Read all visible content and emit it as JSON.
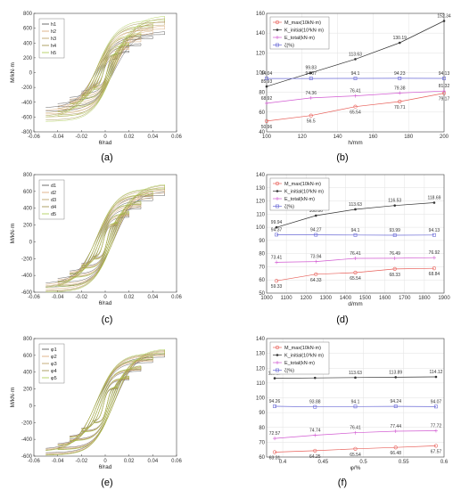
{
  "captions": [
    "(a)",
    "(b)",
    "(c)",
    "(d)",
    "(e)",
    "(f)"
  ],
  "colors": {
    "M": "#e8605a",
    "K": "#333333",
    "E": "#d25bd2",
    "Z": "#6a6ad6"
  },
  "hysteresis": [
    {
      "type": "hysteresis",
      "xlabel": "θ/rad",
      "ylabel": "M/kN·m",
      "xlim": [
        -0.06,
        0.06
      ],
      "ylim": [
        -800,
        800
      ],
      "xticks": [
        "-0.06",
        "-0.04",
        "-0.02",
        "0",
        "0.02",
        "0.04",
        "0.06"
      ],
      "yticks": [
        "800",
        "600",
        "400",
        "200",
        "0",
        "-200",
        "-400",
        "-600",
        "-800"
      ],
      "legend": [
        "h1",
        "h2",
        "h3",
        "h4",
        "h5"
      ],
      "colors": [
        "#4a4a4a",
        "#d8a470",
        "#b79a5a",
        "#9a8a40",
        "#a7c94a"
      ],
      "peaks_pos": [
        560,
        640,
        700,
        740,
        770
      ],
      "peaks_neg": [
        -520,
        -560,
        -600,
        -640,
        -660
      ]
    },
    {
      "type": "hysteresis",
      "xlabel": "θ/rad",
      "ylabel": "M/kN·m",
      "xlim": [
        -0.06,
        0.06
      ],
      "ylim": [
        -600,
        800
      ],
      "xticks": [
        "-0.06",
        "-0.04",
        "-0.02",
        "0",
        "0.02",
        "0.04",
        "0.06"
      ],
      "yticks": [
        "800",
        "600",
        "400",
        "200",
        "0",
        "-200",
        "-400",
        "-600"
      ],
      "legend": [
        "d1",
        "d2",
        "d3",
        "d4",
        "d5"
      ],
      "colors": [
        "#4a4a4a",
        "#d8a470",
        "#b79a5a",
        "#9a8a40",
        "#a7c94a"
      ],
      "peaks_pos": [
        600,
        630,
        660,
        680,
        690
      ],
      "peaks_neg": [
        -540,
        -560,
        -580,
        -590,
        -600
      ]
    },
    {
      "type": "hysteresis",
      "xlabel": "θ/rad",
      "ylabel": "M/kN·m",
      "xlim": [
        -0.06,
        0.06
      ],
      "ylim": [
        -600,
        800
      ],
      "xticks": [
        "-0.06",
        "-0.04",
        "-0.02",
        "0",
        "0.02",
        "0.04",
        "0.06"
      ],
      "yticks": [
        "800",
        "600",
        "400",
        "200",
        "0",
        "-200",
        "-400",
        "-600"
      ],
      "legend": [
        "φ1",
        "φ2",
        "φ3",
        "φ4",
        "φ5"
      ],
      "colors": [
        "#4a4a4a",
        "#d8a470",
        "#b79a5a",
        "#9a8a40",
        "#a7c94a"
      ],
      "peaks_pos": [
        630,
        650,
        660,
        670,
        680
      ],
      "peaks_neg": [
        -560,
        -570,
        -580,
        -585,
        -590
      ]
    }
  ],
  "chart_data": [
    {
      "type": "line",
      "xlabel": "h/mm",
      "x": [
        100,
        125,
        150,
        175,
        200
      ],
      "xlim": [
        100,
        200
      ],
      "ylim": [
        40,
        160
      ],
      "xticks": [
        "100",
        "120",
        "140",
        "160",
        "180",
        "200"
      ],
      "xtick_values": [
        100,
        120,
        140,
        160,
        180,
        200
      ],
      "yticks": [
        "40",
        "60",
        "80",
        "100",
        "120",
        "140",
        "160"
      ],
      "ytick_values": [
        40,
        60,
        80,
        100,
        120,
        140,
        160
      ],
      "legend": [
        "M_max(10kN·m)",
        "K_initial(10³kN·m)",
        "E_total(kN·m)",
        "ζ(%)"
      ],
      "series": [
        {
          "key": "M",
          "values": [
            50.96,
            56.5,
            65.54,
            70.71,
            79.17
          ]
        },
        {
          "key": "K",
          "values": [
            85.93,
            99.83,
            113.63,
            130.19,
            152.34
          ]
        },
        {
          "key": "E",
          "values": [
            68.92,
            74.36,
            76.41,
            79.38,
            81.32
          ]
        },
        {
          "key": "Z",
          "values": [
            94.04,
            94.07,
            94.1,
            94.23,
            94.13
          ]
        }
      ]
    },
    {
      "type": "line",
      "xlabel": "d/mm",
      "x": [
        1050,
        1250,
        1450,
        1650,
        1850
      ],
      "xlim": [
        1000,
        1900
      ],
      "ylim": [
        50,
        140
      ],
      "xticks": [
        "1000",
        "1100",
        "1200",
        "1300",
        "1400",
        "1500",
        "1600",
        "1700",
        "1800",
        "1900"
      ],
      "xtick_values": [
        1000,
        1100,
        1200,
        1300,
        1400,
        1500,
        1600,
        1700,
        1800,
        1900
      ],
      "yticks": [
        "50",
        "60",
        "70",
        "80",
        "90",
        "100",
        "110",
        "120",
        "130",
        "140"
      ],
      "ytick_values": [
        50,
        60,
        70,
        80,
        90,
        100,
        110,
        120,
        130,
        140
      ],
      "legend": [
        "M_max(10kN·m)",
        "K_initial(10³kN·m)",
        "E_total(kN·m)",
        "ζ(%)"
      ],
      "series": [
        {
          "key": "M",
          "values": [
            59.33,
            64.33,
            65.54,
            68.33,
            68.84
          ]
        },
        {
          "key": "K",
          "values": [
            99.94,
            108.86,
            113.63,
            116.53,
            118.69
          ]
        },
        {
          "key": "E",
          "values": [
            73.41,
            73.94,
            76.41,
            76.49,
            76.92
          ]
        },
        {
          "key": "Z",
          "values": [
            94.37,
            94.27,
            94.1,
            93.99,
            94.13
          ]
        }
      ]
    },
    {
      "type": "line",
      "xlabel": "φ/%",
      "x": [
        0.39,
        0.44,
        0.49,
        0.54,
        0.59
      ],
      "xlim": [
        0.38,
        0.6
      ],
      "ylim": [
        60,
        140
      ],
      "xticks": [
        "0.4",
        "0.45",
        "0.5",
        "0.55",
        "0.6"
      ],
      "xtick_values": [
        0.4,
        0.45,
        0.5,
        0.55,
        0.6
      ],
      "yticks": [
        "60",
        "70",
        "80",
        "90",
        "100",
        "110",
        "120",
        "130",
        "140"
      ],
      "ytick_values": [
        60,
        70,
        80,
        90,
        100,
        110,
        120,
        130,
        140
      ],
      "legend": [
        "M_max(10kN·m)",
        "K_initial(10³kN·m)",
        "E_total(kN·m)",
        "ζ(%)"
      ],
      "series": [
        {
          "key": "M",
          "values": [
            63.31,
            64.25,
            65.54,
            66.48,
            67.57
          ]
        },
        {
          "key": "K",
          "values": [
            113.17,
            113.44,
            113.63,
            113.89,
            114.12
          ]
        },
        {
          "key": "E",
          "values": [
            72.57,
            74.74,
            76.41,
            77.44,
            77.72
          ]
        },
        {
          "key": "Z",
          "values": [
            94.26,
            93.88,
            94.1,
            94.24,
            94.07
          ]
        }
      ]
    }
  ]
}
